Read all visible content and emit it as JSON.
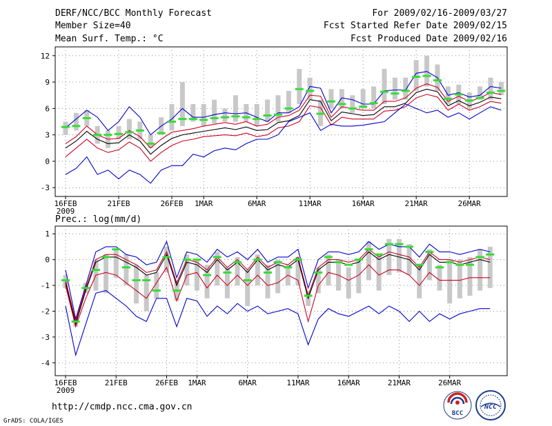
{
  "header": {
    "left": [
      "DERF/NCC/BCC Monthly Forecast",
      "Member Size=40",
      "Mean Surf. Temp.: °C"
    ],
    "right": [
      "For 2009/02/16-2009/03/27",
      "Fcst Started Refer Date 2009/02/15",
      "Fcst Produced Date 2009/02/16"
    ]
  },
  "footer": {
    "url": "http://cmdp.ncc.cma.gov.cn",
    "grads": "GrADS: COLA/IGES",
    "logo_bcc": "BCC",
    "logo_ncc": "NCC"
  },
  "colors": {
    "bar": "#c8c8c8",
    "median": "#33dd33",
    "upper": "#0000cc",
    "lower": "#0000cc",
    "mean": "#000000",
    "inner": "#cc0022",
    "grid": "#888888",
    "axis": "#000000"
  },
  "chart_data": [
    {
      "type": "line",
      "title": "Mean Surf. Temp.: °C",
      "ylim": [
        -4,
        13
      ],
      "yticks": [
        -3,
        0,
        3,
        6,
        9,
        12
      ],
      "xlim": [
        0,
        40
      ],
      "xticks": [
        {
          "x": 0,
          "label": "16FEB",
          "sub": "2009"
        },
        {
          "x": 5,
          "label": "21FEB"
        },
        {
          "x": 10,
          "label": "26FEB"
        },
        {
          "x": 13,
          "label": "1MAR"
        },
        {
          "x": 18,
          "label": "6MAR"
        },
        {
          "x": 23,
          "label": "11MAR"
        },
        {
          "x": 28,
          "label": "16MAR"
        },
        {
          "x": 33,
          "label": "21MAR"
        },
        {
          "x": 38,
          "label": "26MAR"
        }
      ],
      "series": [
        {
          "name": "ensemble-max",
          "role": "upper",
          "values": [
            3.8,
            4.8,
            5.8,
            5.0,
            3.5,
            4.5,
            6.2,
            5.0,
            3.0,
            4.0,
            4.8,
            6.0,
            5.0,
            5.0,
            5.3,
            5.5,
            5.4,
            5.5,
            5.0,
            4.5,
            5.5,
            5.5,
            6.2,
            8.5,
            8.3,
            5.5,
            7.2,
            7.0,
            6.5,
            6.5,
            8.0,
            8.1,
            8.1,
            10.0,
            10.2,
            9.5,
            7.5,
            7.8,
            7.3,
            7.5,
            8.5,
            8.3
          ]
        },
        {
          "name": "upper-inner",
          "role": "inner",
          "values": [
            2.0,
            2.8,
            4.0,
            3.0,
            2.5,
            2.6,
            3.5,
            2.8,
            1.5,
            2.5,
            3.3,
            3.5,
            3.7,
            4.0,
            4.2,
            4.4,
            4.2,
            4.5,
            4.0,
            4.2,
            5.0,
            5.2,
            5.8,
            7.5,
            7.4,
            5.0,
            6.2,
            6.0,
            5.8,
            5.8,
            6.8,
            6.8,
            7.2,
            8.3,
            8.8,
            8.4,
            6.8,
            7.4,
            6.8,
            7.2,
            7.8,
            7.6
          ]
        },
        {
          "name": "ensemble-mean",
          "role": "mean",
          "values": [
            1.5,
            2.3,
            3.4,
            2.5,
            2.0,
            2.1,
            3.0,
            2.3,
            0.8,
            1.8,
            2.6,
            3.0,
            3.2,
            3.4,
            3.6,
            3.8,
            3.6,
            3.9,
            3.5,
            3.6,
            4.4,
            4.6,
            5.2,
            7.0,
            6.8,
            4.6,
            5.6,
            5.4,
            5.2,
            5.3,
            6.2,
            6.2,
            6.6,
            7.8,
            8.2,
            7.9,
            6.3,
            6.9,
            6.3,
            6.7,
            7.3,
            7.1
          ]
        },
        {
          "name": "lower-inner",
          "role": "inner",
          "values": [
            0.5,
            1.5,
            2.5,
            1.5,
            1.0,
            1.3,
            2.2,
            1.5,
            0.0,
            1.0,
            1.8,
            2.3,
            2.5,
            2.8,
            2.9,
            3.0,
            2.9,
            3.2,
            2.8,
            3.0,
            3.8,
            4.0,
            4.5,
            6.3,
            6.1,
            4.1,
            5.0,
            4.8,
            4.8,
            4.8,
            5.7,
            5.8,
            6.2,
            7.2,
            7.6,
            7.3,
            5.8,
            6.5,
            5.8,
            6.2,
            6.8,
            6.6
          ]
        },
        {
          "name": "ensemble-min",
          "role": "lower",
          "values": [
            -1.5,
            -0.8,
            0.5,
            -1.5,
            -1.0,
            -2.0,
            -1.0,
            -1.5,
            -2.5,
            -1.0,
            -0.5,
            -0.5,
            0.8,
            0.5,
            1.2,
            1.5,
            1.3,
            2.0,
            2.5,
            2.5,
            3.0,
            4.5,
            5.0,
            5.5,
            3.5,
            4.2,
            4.0,
            4.0,
            4.1,
            4.3,
            4.5,
            5.5,
            6.5,
            6.0,
            5.5,
            5.8,
            5.0,
            5.5,
            4.8,
            5.5,
            6.2,
            5.8
          ]
        }
      ],
      "box_ranges": [
        [
          3,
          4.5
        ],
        [
          3.5,
          5.5
        ],
        [
          4,
          5.8
        ],
        [
          2,
          4
        ],
        [
          1.5,
          3.5
        ],
        [
          2.5,
          4
        ],
        [
          2.5,
          4.8
        ],
        [
          2.5,
          4.5
        ],
        [
          1.5,
          3
        ],
        [
          3,
          5
        ],
        [
          3.5,
          6.5
        ],
        [
          4,
          9
        ],
        [
          4.5,
          6.5
        ],
        [
          4,
          6.5
        ],
        [
          4.3,
          7
        ],
        [
          4.5,
          6
        ],
        [
          4.5,
          7.5
        ],
        [
          4.5,
          6.5
        ],
        [
          4,
          6.5
        ],
        [
          4.5,
          7
        ],
        [
          4.5,
          7.5
        ],
        [
          5.5,
          8
        ],
        [
          6.5,
          10.5
        ],
        [
          7,
          9.5
        ],
        [
          4,
          7
        ],
        [
          6,
          8.2
        ],
        [
          6,
          8.2
        ],
        [
          5.5,
          7.5
        ],
        [
          6,
          8.2
        ],
        [
          6,
          8.5
        ],
        [
          6.5,
          10.5
        ],
        [
          7,
          9.5
        ],
        [
          7,
          9.5
        ],
        [
          8,
          11.5
        ],
        [
          8.5,
          12
        ],
        [
          8,
          11
        ],
        [
          6.5,
          8.5
        ],
        [
          6.5,
          8.7
        ],
        [
          6,
          7.8
        ],
        [
          7,
          8.5
        ],
        [
          7,
          9.5
        ],
        [
          7.5,
          9
        ]
      ],
      "medians": [
        3.9,
        4.0,
        4.9,
        3.0,
        3.0,
        3.1,
        3.3,
        3.5,
        2.0,
        3.2,
        4.5,
        4.8,
        4.8,
        4.7,
        4.9,
        5.0,
        5.1,
        5.0,
        4.8,
        5.2,
        5.3,
        6.0,
        8.2,
        8.0,
        5.4,
        6.8,
        6.5,
        6.0,
        6.2,
        6.6,
        7.9,
        7.7,
        8.0,
        9.6,
        9.7,
        9.2,
        7.1,
        7.6,
        6.9,
        7.2,
        7.8,
        8.0
      ]
    },
    {
      "type": "line",
      "title": "Prec.: log(mm/d)",
      "ylim": [
        -4.5,
        1.3
      ],
      "yticks": [
        -4,
        -3,
        -2,
        -1,
        0,
        1
      ],
      "xlim": [
        0,
        40
      ],
      "xticks": [
        {
          "x": 0,
          "label": "16FEB",
          "sub": "2009"
        },
        {
          "x": 5,
          "label": "21FEB"
        },
        {
          "x": 10,
          "label": "26FEB"
        },
        {
          "x": 13,
          "label": "1MAR"
        },
        {
          "x": 18,
          "label": "6MAR"
        },
        {
          "x": 23,
          "label": "11MAR"
        },
        {
          "x": 28,
          "label": "16MAR"
        },
        {
          "x": 33,
          "label": "21MAR"
        },
        {
          "x": 38,
          "label": "26MAR"
        }
      ],
      "series": [
        {
          "name": "ensemble-max",
          "role": "upper",
          "values": [
            -0.4,
            -2.3,
            -1.0,
            0.3,
            0.5,
            0.5,
            0.2,
            0.1,
            -0.2,
            -0.1,
            0.7,
            -0.7,
            0.3,
            0.2,
            -0.1,
            0.4,
            0.1,
            0.3,
            0.0,
            0.4,
            -0.1,
            0.1,
            0.1,
            0.4,
            -1.1,
            0.0,
            0.3,
            0.3,
            0.2,
            0.3,
            0.7,
            0.4,
            0.6,
            0.5,
            0.5,
            0.1,
            0.6,
            0.3,
            0.3,
            0.2,
            0.3,
            0.4,
            0.3
          ]
        },
        {
          "name": "upper-inner",
          "role": "inner",
          "values": [
            -0.8,
            -2.4,
            -1.1,
            0.0,
            0.2,
            0.2,
            0.0,
            -0.2,
            -0.5,
            -0.4,
            0.3,
            -0.9,
            0.0,
            -0.1,
            -0.4,
            0.1,
            -0.3,
            0.0,
            -0.4,
            0.1,
            -0.3,
            -0.1,
            -0.2,
            0.1,
            -1.4,
            -0.3,
            0.0,
            0.0,
            -0.1,
            0.0,
            0.4,
            0.1,
            0.3,
            0.2,
            0.1,
            -0.3,
            0.3,
            0.0,
            0.0,
            -0.1,
            0.0,
            0.1,
            0.0
          ]
        },
        {
          "name": "ensemble-mean",
          "role": "mean",
          "values": [
            -0.9,
            -2.5,
            -1.2,
            -0.1,
            0.1,
            0.1,
            -0.1,
            -0.3,
            -0.6,
            -0.5,
            0.2,
            -1.0,
            -0.1,
            -0.2,
            -0.5,
            0.0,
            -0.4,
            -0.1,
            -0.5,
            0.0,
            -0.4,
            -0.2,
            -0.3,
            0.0,
            -1.5,
            -0.4,
            -0.1,
            -0.1,
            -0.2,
            -0.1,
            0.3,
            0.0,
            0.2,
            0.1,
            0.0,
            -0.4,
            0.2,
            -0.1,
            -0.1,
            -0.2,
            -0.1,
            0.0,
            -0.1
          ]
        },
        {
          "name": "lower-inner",
          "role": "inner",
          "values": [
            -1.0,
            -2.6,
            -1.5,
            -0.6,
            -0.5,
            -0.6,
            -0.9,
            -1.2,
            -1.5,
            -0.9,
            -0.3,
            -1.6,
            -0.6,
            -0.5,
            -1.1,
            -0.6,
            -1.0,
            -0.6,
            -1.0,
            -0.6,
            -1.0,
            -0.9,
            -0.6,
            -0.8,
            -2.4,
            -1.0,
            -0.5,
            -0.6,
            -0.8,
            -0.6,
            -0.2,
            -0.6,
            -0.4,
            -0.4,
            -0.6,
            -1.0,
            -0.5,
            -0.8,
            -0.8,
            -0.8,
            -0.7,
            -0.7,
            -0.7
          ]
        },
        {
          "name": "ensemble-min",
          "role": "lower",
          "values": [
            -1.8,
            -3.7,
            -2.5,
            -1.3,
            -1.2,
            -1.5,
            -1.8,
            -2.2,
            -2.4,
            -1.5,
            -1.5,
            -2.6,
            -1.5,
            -1.6,
            -2.2,
            -1.8,
            -2.1,
            -1.7,
            -2.0,
            -1.8,
            -2.1,
            -2.0,
            -1.9,
            -2.1,
            -3.3,
            -2.3,
            -1.9,
            -2.1,
            -2.2,
            -2.0,
            -1.8,
            -2.1,
            -1.8,
            -2.0,
            -2.4,
            -2.0,
            -2.4,
            -2.1,
            -2.3,
            -2.1,
            -2.0,
            -1.9,
            -1.9
          ]
        },
        {
          "name": "ensemble-mean-dup",
          "role": "hidden",
          "values": []
        }
      ],
      "box_ranges": [
        [
          -1.1,
          -0.6
        ],
        [
          -2.6,
          -2.2
        ],
        [
          -1.3,
          -0.9
        ],
        [
          -1.2,
          0.0
        ],
        [
          -1.3,
          0.2
        ],
        [
          -0.7,
          0.4
        ],
        [
          -1.0,
          0.2
        ],
        [
          -1.7,
          -0.2
        ],
        [
          -2.0,
          -0.6
        ],
        [
          -1.5,
          -0.5
        ],
        [
          -0.5,
          0.5
        ],
        [
          -1.6,
          -0.8
        ],
        [
          -1.0,
          0.2
        ],
        [
          -1.2,
          0.0
        ],
        [
          -1.5,
          -0.2
        ],
        [
          -1.0,
          0.3
        ],
        [
          -1.5,
          -0.3
        ],
        [
          -1.0,
          0.1
        ],
        [
          -1.8,
          -0.4
        ],
        [
          -1.0,
          0.2
        ],
        [
          -1.5,
          -0.2
        ],
        [
          -1.3,
          0.0
        ],
        [
          -1.0,
          -0.2
        ],
        [
          -1.0,
          0.1
        ],
        [
          -1.8,
          -1.2
        ],
        [
          -1.3,
          -0.3
        ],
        [
          -1.0,
          0.2
        ],
        [
          -1.2,
          0.0
        ],
        [
          -1.5,
          -0.3
        ],
        [
          -1.3,
          0.0
        ],
        [
          -0.8,
          0.7
        ],
        [
          -1.2,
          0.2
        ],
        [
          -0.6,
          0.8
        ],
        [
          -0.5,
          0.8
        ],
        [
          -0.6,
          0.6
        ],
        [
          -1.5,
          -0.2
        ],
        [
          -0.8,
          0.4
        ],
        [
          -1.2,
          -0.2
        ],
        [
          -1.7,
          0.0
        ],
        [
          -1.5,
          0.0
        ],
        [
          -1.4,
          0.1
        ],
        [
          -1.2,
          0.4
        ],
        [
          -1.1,
          0.5
        ]
      ],
      "medians": [
        -0.8,
        -2.4,
        -1.1,
        -0.4,
        0.1,
        0.4,
        -0.3,
        -0.8,
        -0.8,
        -1.2,
        0.1,
        -1.2,
        0.0,
        0.0,
        -0.6,
        0.1,
        -0.5,
        -0.1,
        -0.8,
        0.0,
        -0.5,
        -0.1,
        -0.3,
        0.0,
        -1.4,
        -0.5,
        0.1,
        -0.1,
        -0.2,
        0.0,
        0.4,
        0.2,
        0.6,
        0.6,
        0.5,
        -0.2,
        0.3,
        -0.3,
        -0.1,
        -0.2,
        -0.2,
        0.1,
        0.2
      ]
    }
  ]
}
